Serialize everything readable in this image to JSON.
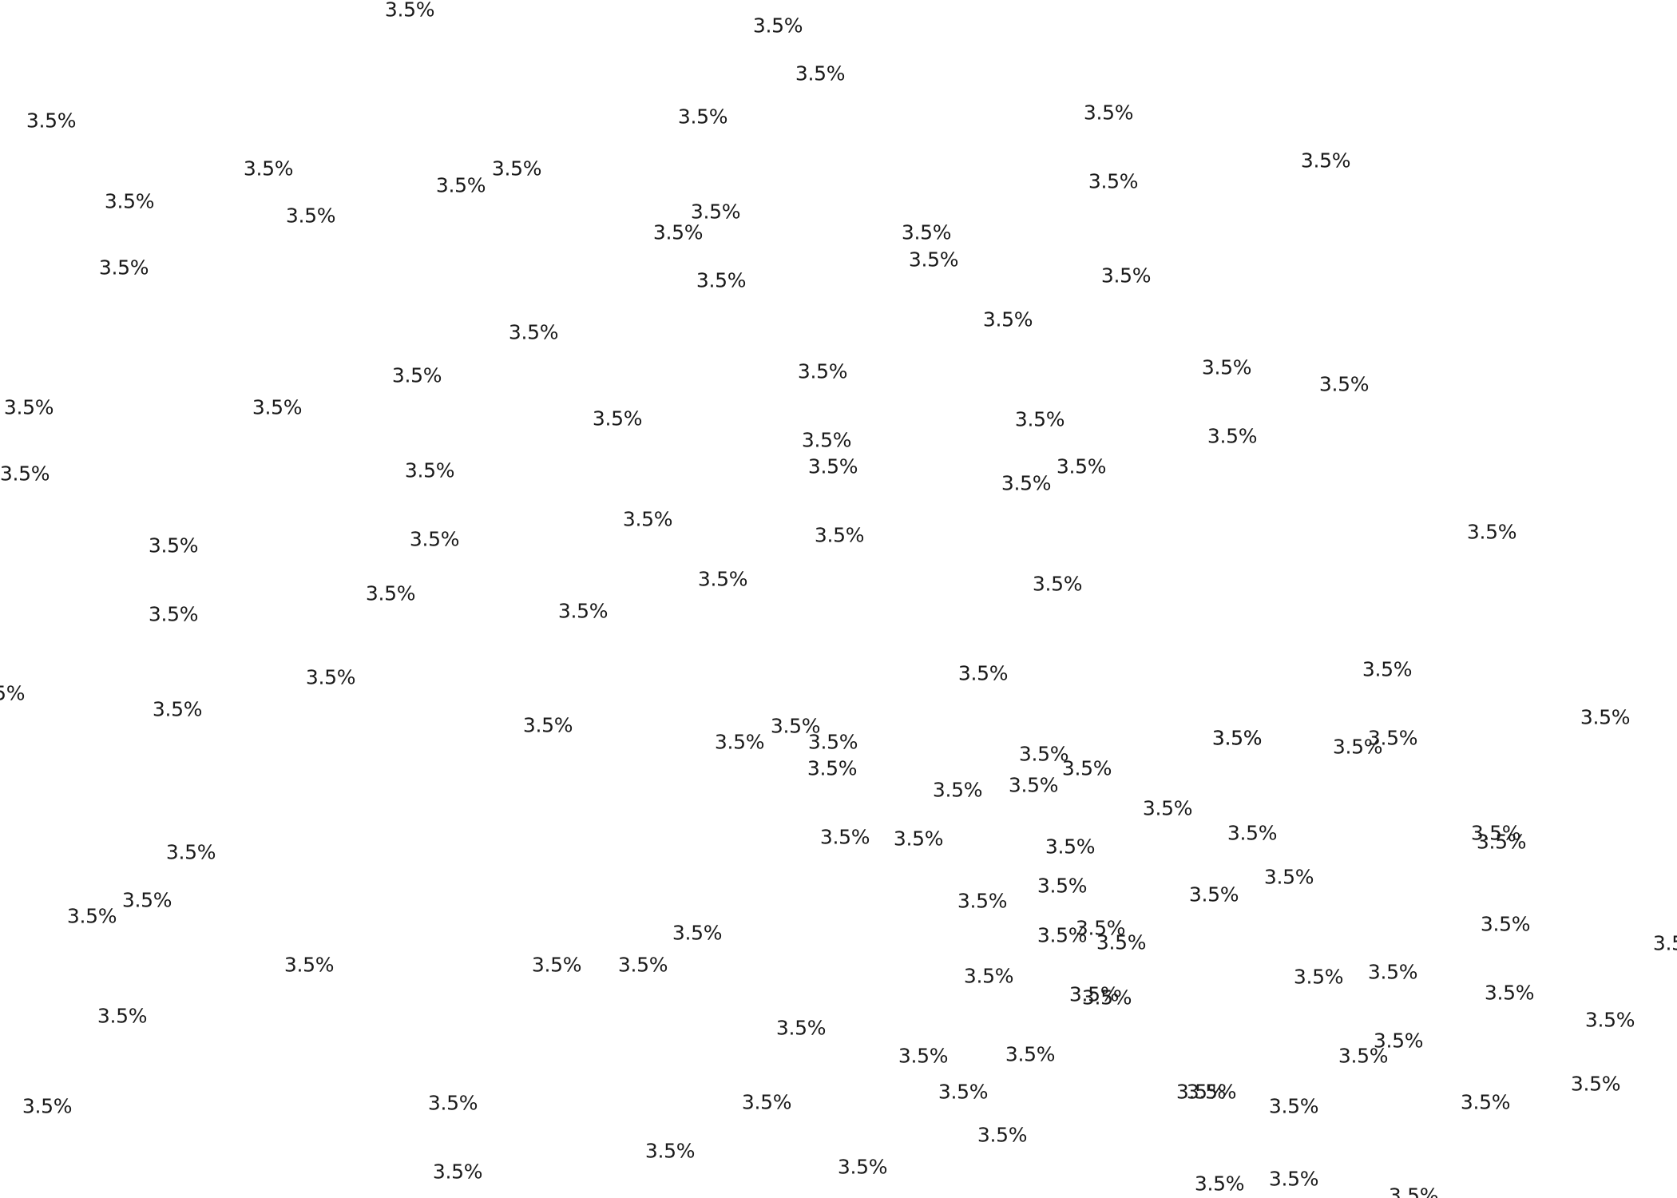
{
  "labels": [
    "3.5%",
    "3.5%",
    "3.5%",
    "3.5%",
    "3.5%",
    "3.5%",
    "3.5%",
    "3.5%",
    "3.5%",
    "3.5%",
    "3.5%",
    "3.5%",
    "3.5%",
    "3.5%",
    "3.5%",
    "3.5%",
    "3.5%",
    "3.5%",
    "3.5%",
    "3.5%",
    "3.5%",
    "3.5%",
    "3.5%",
    "3.5%",
    "3.5%",
    "3.5%",
    "3.5%",
    "3.5%",
    "3.5%",
    "3.5%",
    "3.5%",
    "3.5%",
    "3.5%",
    "3.5%",
    "3.5%",
    "3.5%",
    "3.5%",
    "3.5%",
    "3.5%",
    "3.5%",
    "3.5%",
    "3.5%",
    "3.5%",
    "3.5%",
    "3.5%",
    "3.5%",
    "3.5%",
    "3.5%",
    "3.5%",
    "3.5%",
    "3.5%",
    "3.5%",
    "3.5%",
    "3.5%",
    "3.5%",
    "3.5%",
    "3.5%",
    "3.5%",
    "3.5%",
    "3.5%",
    "3.5%",
    "3.5%",
    "3.5%",
    "3.5%",
    "3.5%",
    "3.5%",
    "3.5%",
    "3.5%",
    "3.5%",
    "3.5%",
    "3.5%",
    "3.5%",
    "3.5%",
    "3.5%",
    "3.5%",
    "3.5%",
    "3.5%",
    "3.5%",
    "3.5%",
    "3.5%",
    "3.5%",
    "3.5%",
    "3.5%",
    "3.5%",
    "3.5%",
    "3.5%",
    "3.5%",
    "3.5%",
    "3.5%",
    "3.5%",
    "3.5%",
    "3.5%",
    "3.5%",
    "3.5%",
    "3.5%",
    "3.5%",
    "3.5%",
    "3.5%",
    "3.5%",
    "3.5%",
    "3.5%",
    "3.5%",
    "3.5%",
    "3.5%",
    "3.5%",
    "3.5%",
    "3.5%",
    "3.5%",
    "3.5%",
    "3.5%",
    "3.5%",
    "3.5%",
    "3.5%",
    "3.5%",
    "3.5%",
    "3.5%",
    "3.5%",
    "3.5%"
  ],
  "colors": {
    "background": "#ffffff",
    "text": "#1a1a1a"
  }
}
